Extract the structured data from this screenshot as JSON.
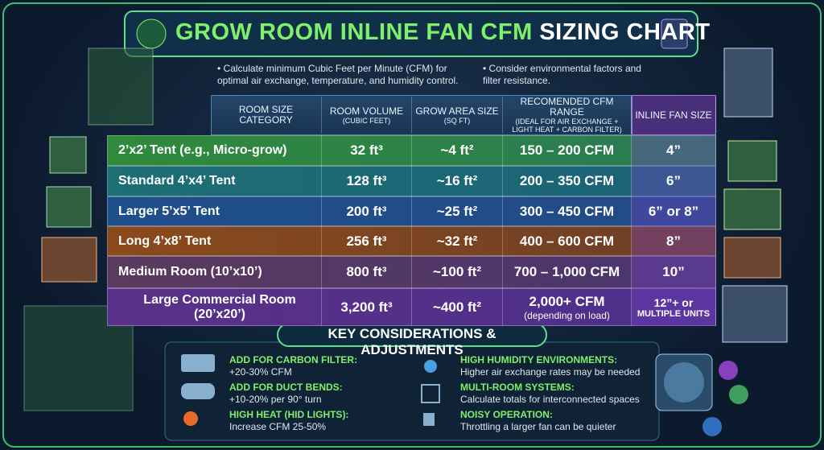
{
  "header": {
    "title_main": "GROW ROOM INLINE FAN CFM",
    "title_accent": "SIZING CHART"
  },
  "bullets": [
    "Calculate minimum Cubic Feet per Minute (CFM) for optimal air exchange, temperature, and humidity control.",
    "Consider environmental factors and filter resistance."
  ],
  "table": {
    "columns": [
      {
        "text": "ROOM SIZE CATEGORY"
      },
      {
        "text": "ROOM VOLUME",
        "sub": "(CUBIC FEET)"
      },
      {
        "text": "GROW AREA SIZE",
        "sub": "(SQ FT)"
      },
      {
        "text": "RECOMENDED CFM RANGE",
        "sub": "(IDEAL FOR AIR EXCHANGE + LIGHT HEAT + CARBON FILTER)"
      },
      {
        "text": "INLINE FAN SIZE"
      }
    ],
    "rows": [
      [
        "2’x2’ Tent (e.g., Micro-grow)",
        "32 ft³",
        "~4 ft²",
        "150 – 200 CFM",
        "4”"
      ],
      [
        "Standard 4’x4’ Tent",
        "128 ft³",
        "~16 ft²",
        "200 – 350 CFM",
        "6”"
      ],
      [
        "Larger 5’x5’ Tent",
        "200 ft³",
        "~25 ft²",
        "300 – 450 CFM",
        "6” or 8”"
      ],
      [
        "Long 4’x8’ Tent",
        "256 ft³",
        "~32 ft²",
        "400 – 600 CFM",
        "8”"
      ],
      [
        "Medium Room (10’x10’)",
        "800 ft³",
        "~100 ft²",
        "700 – 1,000 CFM",
        "10”"
      ],
      [
        "Large Commercial Room (20’x20’)",
        "3,200 ft³",
        "~400 ft²",
        [
          "2,000+ CFM",
          "(depending on load)"
        ],
        [
          "12”+ or",
          "MULTIPLE UNITS"
        ]
      ]
    ]
  },
  "considerations": {
    "title": "KEY CONSIDERATIONS & ADJUSTMENTS",
    "items": [
      {
        "heading": "ADD FOR CARBON FILTER:",
        "text": "+20-30% CFM"
      },
      {
        "heading": "ADD FOR DUCT BENDS:",
        "text": "+10-20% per 90° turn"
      },
      {
        "heading": "HIGH HEAT (HID LIGHTS):",
        "text": "Increase CFM 25-50%"
      },
      {
        "heading": "HIGH HUMIDITY ENVIRONMENTS:",
        "text": "Higher air exchange rates may be needed"
      },
      {
        "heading": "MULTI-ROOM SYSTEMS:",
        "text": "Calculate totals for interconnected spaces"
      },
      {
        "heading": "NOISY OPERATION:",
        "text": "Throttling a larger fan can be quieter"
      }
    ]
  }
}
